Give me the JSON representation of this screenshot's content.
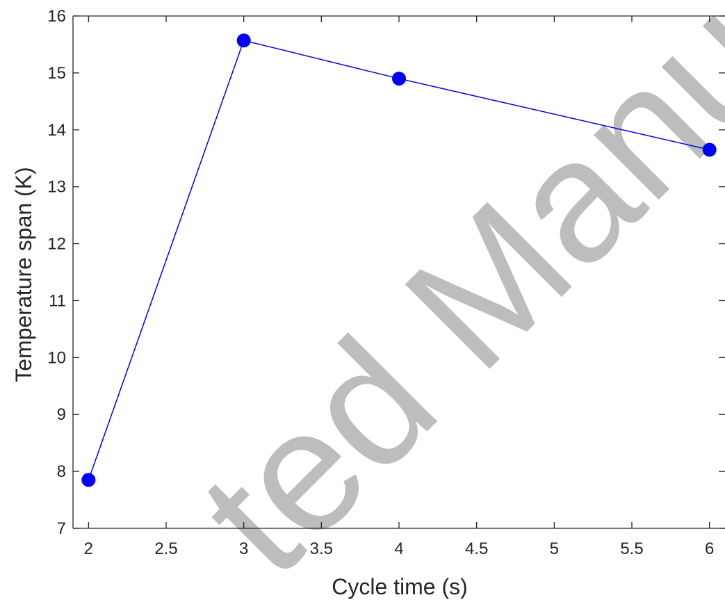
{
  "chart_data": {
    "type": "line",
    "x": [
      2,
      3,
      4,
      6
    ],
    "series": [
      {
        "values": [
          7.85,
          15.57,
          14.9,
          13.65
        ]
      }
    ],
    "xlabel": "Cycle time (s)",
    "ylabel": "Temperature span (K)",
    "xlim": [
      1.9,
      6.1
    ],
    "ylim": [
      7,
      16
    ],
    "xticks": [
      2,
      2.5,
      3,
      3.5,
      4,
      4.5,
      5,
      5.5,
      6
    ],
    "yticks": [
      7,
      8,
      9,
      10,
      11,
      12,
      13,
      14,
      15,
      16
    ],
    "xtick_labels": [
      "2",
      "2.5",
      "3",
      "3.5",
      "4",
      "4.5",
      "5",
      "5.5",
      "6"
    ],
    "ytick_labels": [
      "7",
      "8",
      "9",
      "10",
      "11",
      "12",
      "13",
      "14",
      "15",
      "16"
    ],
    "grid": false,
    "line_color": "#0000ee",
    "marker": "filled-circle",
    "marker_color": "#0000ff"
  },
  "watermark": {
    "text": "ted Manuscri",
    "color": "#bdbdbd"
  }
}
